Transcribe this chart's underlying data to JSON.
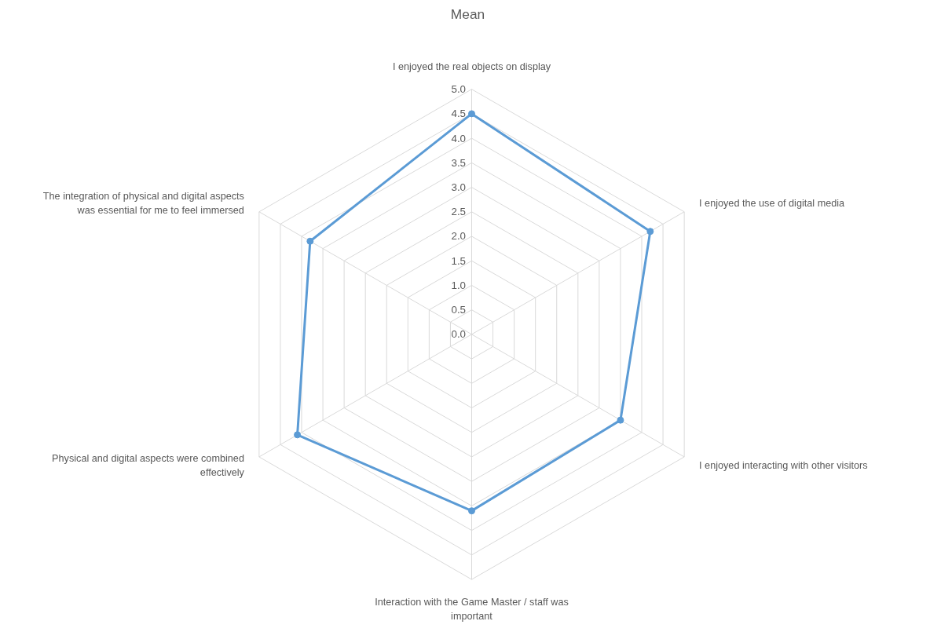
{
  "chart_data": {
    "type": "radar",
    "title": "Mean",
    "categories": [
      "I enjoyed the real objects on display",
      "I enjoyed the use of digital media",
      "I enjoyed interacting with other visitors",
      "Interaction with the Game Master / staff was important",
      "Physical and digital aspects were combined effectively",
      "The integration of physical and digital aspects was essential for me to feel immersed"
    ],
    "series": [
      {
        "color": "#5b9bd5",
        "values": [
          4.5,
          4.2,
          3.5,
          3.6,
          4.1,
          3.8
        ]
      }
    ],
    "ylim": [
      0,
      5
    ],
    "yticks": [
      {
        "value": 0,
        "label": "0.0"
      },
      {
        "value": 0.5,
        "label": "0.5"
      },
      {
        "value": 1,
        "label": "1.0"
      },
      {
        "value": 1.5,
        "label": "1.5"
      },
      {
        "value": 2,
        "label": "2.0"
      },
      {
        "value": 2.5,
        "label": "2.5"
      },
      {
        "value": 3,
        "label": "3.0"
      },
      {
        "value": 3.5,
        "label": "3.5"
      },
      {
        "value": 4,
        "label": "4.0"
      },
      {
        "value": 4.5,
        "label": "4.5"
      },
      {
        "value": 5,
        "label": "5.0"
      }
    ],
    "grid": true,
    "marker": "circle"
  }
}
